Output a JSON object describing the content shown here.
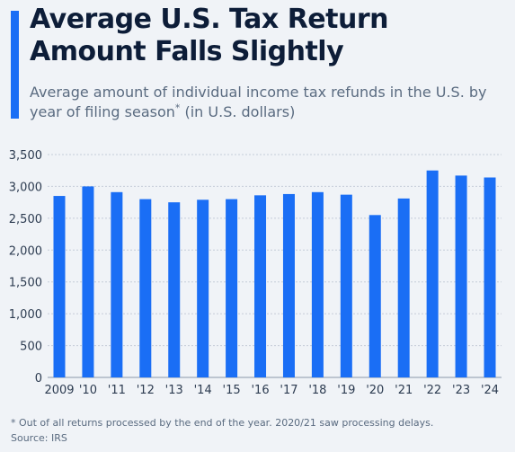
{
  "header": {
    "title_line1": "Average U.S. Tax Return",
    "title_line2": "Amount Falls Slightly",
    "subtitle_main": "Average amount of individual income tax refunds in the U.S. by year of filing season",
    "subtitle_mark": "*",
    "subtitle_tail": " (in U.S. dollars)"
  },
  "footer": {
    "note": "* Out of all returns processed by the end of the year. 2020/21 saw processing delays.",
    "source": "Source: IRS"
  },
  "colors": {
    "bar": "#1a6ef5",
    "accent": "#1a6ef5",
    "grid": "#c4ccd8"
  },
  "chart_data": {
    "type": "bar",
    "categories": [
      "2009",
      "'10",
      "'11",
      "'12",
      "'13",
      "'14",
      "'15",
      "'16",
      "'17",
      "'18",
      "'19",
      "'20",
      "'21",
      "'22",
      "'23",
      "'24"
    ],
    "values": [
      2850,
      3000,
      2910,
      2800,
      2750,
      2790,
      2800,
      2860,
      2880,
      2910,
      2870,
      2550,
      2810,
      3250,
      3170,
      3140
    ],
    "ylim": [
      0,
      3500
    ],
    "yticks": [
      0,
      500,
      1000,
      1500,
      2000,
      2500,
      3000,
      3500
    ],
    "ytick_labels": [
      "0",
      "500",
      "1,000",
      "1,500",
      "2,000",
      "2,500",
      "3,000",
      "3,500"
    ],
    "grid": true,
    "legend": "none"
  }
}
